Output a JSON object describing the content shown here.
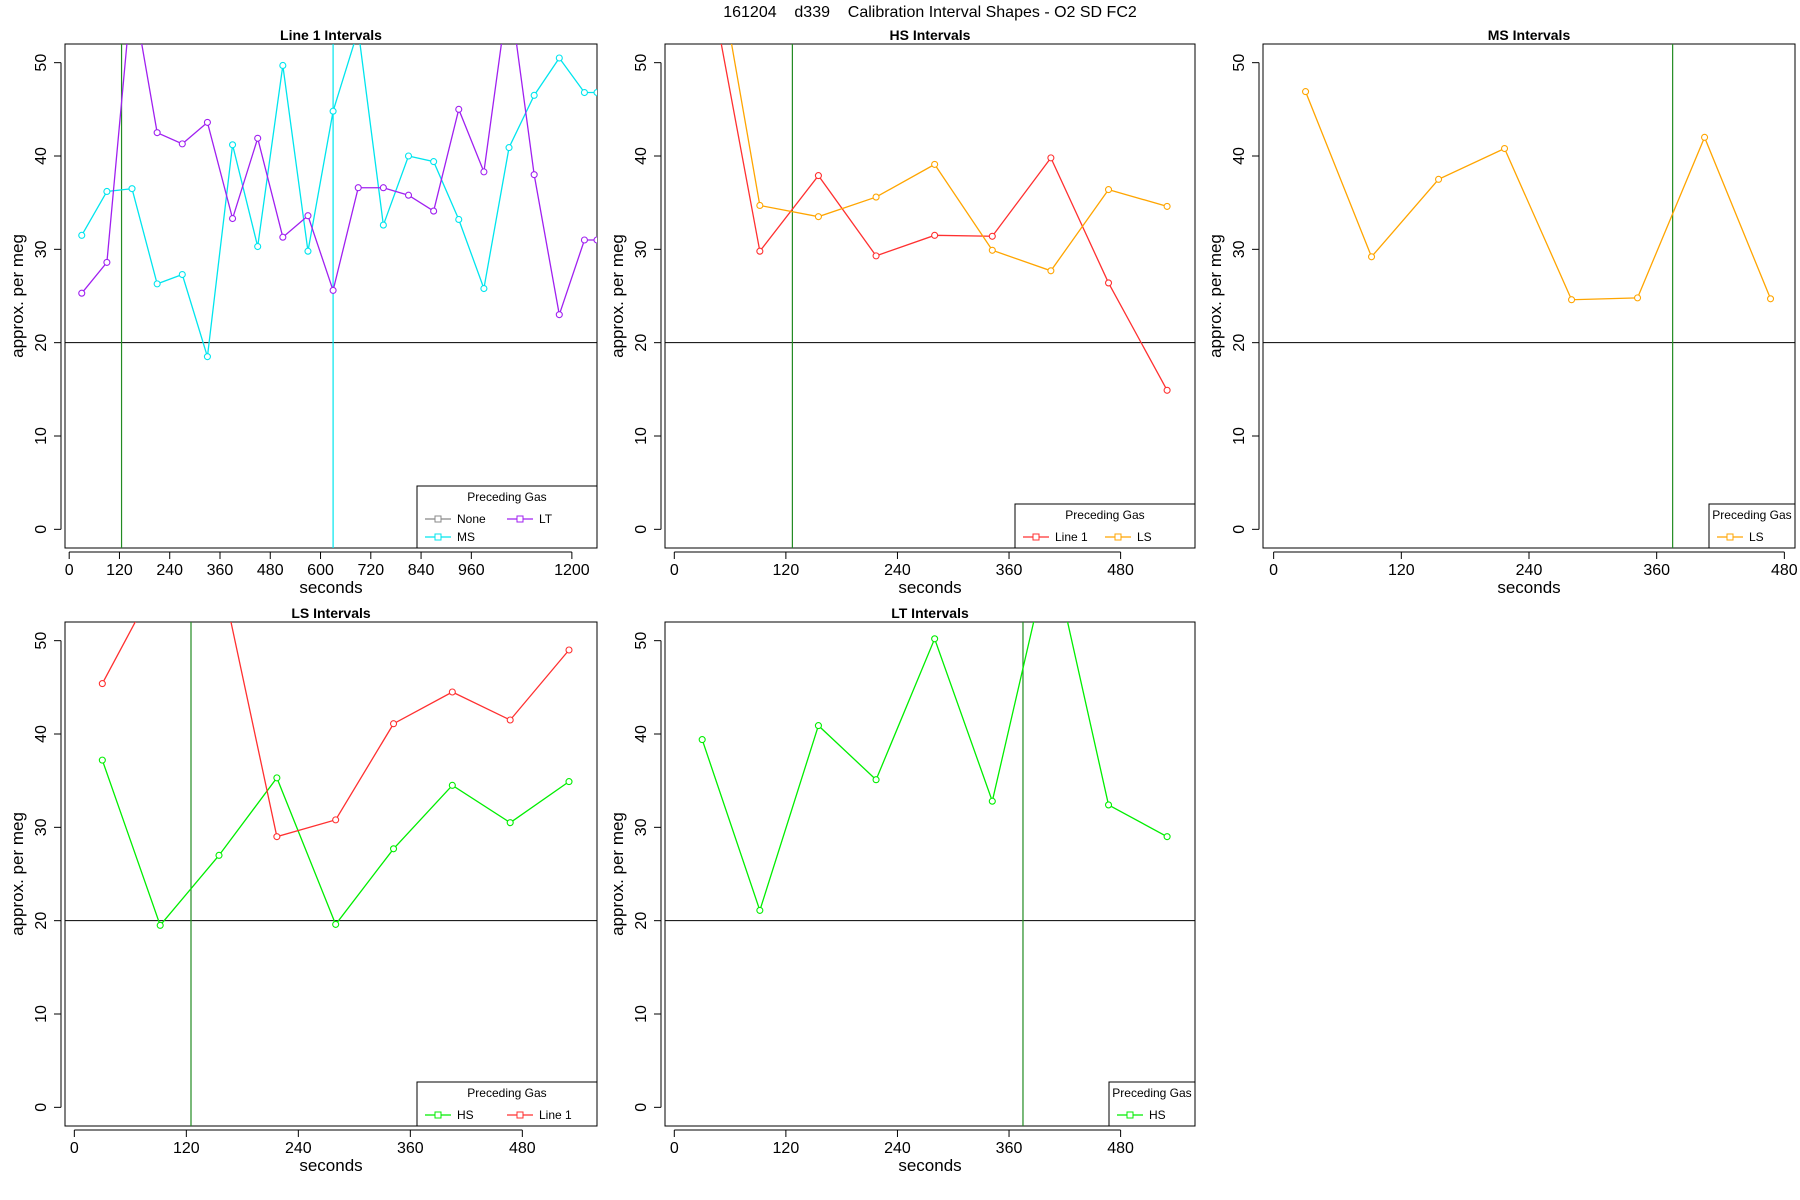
{
  "page_title": "161204    d339    Calibration Interval Shapes - O2 SD FC2",
  "chart_data": [
    {
      "type": "line",
      "title": "Line 1 Intervals",
      "xlabel": "seconds",
      "ylabel": "approx. per meg",
      "xlim": [
        -10,
        1260
      ],
      "ylim": [
        -2,
        52
      ],
      "xticks": [
        0,
        120,
        240,
        360,
        480,
        600,
        720,
        840,
        960,
        1200
      ],
      "xtick_labels": [
        "0",
        "120",
        "240",
        "360",
        "480",
        "600",
        "720",
        "840",
        "960",
        "1200"
      ],
      "yticks": [
        0,
        10,
        20,
        30,
        40,
        50
      ],
      "hline": 20,
      "vlines": [
        {
          "x": 125,
          "color": "#228B22"
        },
        {
          "x": 630,
          "color": "#00E5EE"
        }
      ],
      "legend": {
        "title": "Preceding Gas",
        "position": "bottom-right",
        "columns": 2,
        "entries": [
          {
            "name": "None",
            "color": "#888888"
          },
          {
            "name": "LT",
            "color": "#A020F0"
          },
          {
            "name": "MS",
            "color": "#00E5EE"
          }
        ]
      },
      "series": [
        {
          "name": "MS",
          "color": "#00E5EE",
          "x": [
            30,
            90,
            150,
            210,
            270,
            330,
            390,
            450,
            510,
            570,
            630,
            690,
            750,
            810,
            870,
            930,
            990,
            1050,
            1110,
            1170,
            1230,
            1260
          ],
          "y": [
            31.5,
            36.2,
            36.5,
            26.3,
            27.3,
            18.5,
            41.2,
            30.3,
            49.7,
            29.8,
            44.8,
            53.5,
            32.6,
            40.0,
            39.4,
            33.2,
            25.8,
            40.9,
            46.5,
            50.5,
            46.8,
            46.8
          ]
        },
        {
          "name": "LT",
          "color": "#A020F0",
          "x": [
            30,
            90,
            150,
            210,
            270,
            330,
            390,
            450,
            510,
            570,
            630,
            690,
            750,
            810,
            870,
            930,
            990,
            1050,
            1110,
            1170,
            1230,
            1260
          ],
          "y": [
            25.3,
            28.6,
            58.0,
            42.5,
            41.3,
            43.6,
            33.3,
            41.9,
            31.3,
            33.6,
            25.6,
            36.6,
            36.6,
            35.8,
            34.1,
            45.0,
            38.3,
            58.0,
            38.0,
            23.0,
            31.0,
            31.0
          ]
        }
      ]
    },
    {
      "type": "line",
      "title": "HS Intervals",
      "xlabel": "seconds",
      "ylabel": "approx. per meg",
      "xlim": [
        -10,
        560
      ],
      "ylim": [
        -2,
        52
      ],
      "xticks": [
        0,
        120,
        240,
        360,
        480
      ],
      "xtick_labels": [
        "0",
        "120",
        "240",
        "360",
        "480"
      ],
      "yticks": [
        0,
        10,
        20,
        30,
        40,
        50
      ],
      "hline": 20,
      "vlines": [
        {
          "x": 127,
          "color": "#228B22"
        }
      ],
      "legend": {
        "title": "Preceding Gas",
        "position": "bottom-right",
        "columns": 2,
        "entries": [
          {
            "name": "Line 1",
            "color": "#FF3030"
          },
          {
            "name": "LS",
            "color": "#FFA500"
          }
        ]
      },
      "series": [
        {
          "name": "Line 1",
          "color": "#FF3030",
          "x": [
            30,
            92,
            155,
            217,
            280,
            342,
            405,
            467,
            530
          ],
          "y": [
            63.0,
            29.8,
            37.9,
            29.3,
            31.5,
            31.4,
            39.8,
            26.4,
            14.9
          ]
        },
        {
          "name": "LS",
          "color": "#FFA500",
          "x": [
            30,
            92,
            155,
            217,
            280,
            342,
            405,
            467,
            530
          ],
          "y": [
            70.0,
            34.7,
            33.5,
            35.6,
            39.1,
            29.9,
            27.7,
            36.4,
            34.6
          ]
        }
      ]
    },
    {
      "type": "line",
      "title": "MS Intervals",
      "xlabel": "seconds",
      "ylabel": "approx. per meg",
      "xlim": [
        -10,
        490
      ],
      "ylim": [
        -2,
        52
      ],
      "xticks": [
        0,
        120,
        240,
        360,
        480
      ],
      "xtick_labels": [
        "0",
        "120",
        "240",
        "360",
        "480"
      ],
      "yticks": [
        0,
        10,
        20,
        30,
        40,
        50
      ],
      "hline": 20,
      "vlines": [
        {
          "x": 375,
          "color": "#228B22"
        }
      ],
      "legend": {
        "title": "Preceding Gas",
        "position": "bottom-right",
        "columns": 1,
        "entries": [
          {
            "name": "LS",
            "color": "#FFA500"
          }
        ]
      },
      "series": [
        {
          "name": "LS",
          "color": "#FFA500",
          "x": [
            30,
            92,
            155,
            217,
            280,
            342,
            405,
            467
          ],
          "y": [
            46.9,
            29.2,
            37.5,
            40.8,
            24.6,
            24.8,
            42.0,
            24.7
          ]
        }
      ]
    },
    {
      "type": "line",
      "title": "LS Intervals",
      "xlabel": "seconds",
      "ylabel": "approx. per meg",
      "xlim": [
        -10,
        560
      ],
      "ylim": [
        -2,
        52
      ],
      "xticks": [
        0,
        120,
        240,
        360,
        480
      ],
      "xtick_labels": [
        "0",
        "120",
        "240",
        "360",
        "480"
      ],
      "yticks": [
        0,
        10,
        20,
        30,
        40,
        50
      ],
      "hline": 20,
      "vlines": [
        {
          "x": 125,
          "color": "#228B22"
        }
      ],
      "legend": {
        "title": "Preceding Gas",
        "position": "bottom-right",
        "columns": 2,
        "entries": [
          {
            "name": "HS",
            "color": "#00EE00"
          },
          {
            "name": "Line 1",
            "color": "#FF3030"
          }
        ]
      },
      "series": [
        {
          "name": "HS",
          "color": "#00EE00",
          "x": [
            30,
            92,
            155,
            217,
            280,
            342,
            405,
            467,
            530
          ],
          "y": [
            37.2,
            19.5,
            27.0,
            35.3,
            19.6,
            27.7,
            34.5,
            30.5,
            34.9
          ]
        },
        {
          "name": "Line 1",
          "color": "#FF3030",
          "x": [
            30,
            92,
            155,
            217,
            280,
            342,
            405,
            467,
            530
          ],
          "y": [
            45.4,
            57.0,
            58.0,
            29.0,
            30.8,
            41.1,
            44.5,
            41.5,
            49.0
          ]
        }
      ]
    },
    {
      "type": "line",
      "title": "LT Intervals",
      "xlabel": "seconds",
      "ylabel": "approx. per meg",
      "xlim": [
        -10,
        560
      ],
      "ylim": [
        -2,
        52
      ],
      "xticks": [
        0,
        120,
        240,
        360,
        480
      ],
      "xtick_labels": [
        "0",
        "120",
        "240",
        "360",
        "480"
      ],
      "yticks": [
        0,
        10,
        20,
        30,
        40,
        50
      ],
      "hline": 20,
      "vlines": [
        {
          "x": 375,
          "color": "#228B22"
        }
      ],
      "legend": {
        "title": "Preceding Gas",
        "position": "bottom-right",
        "columns": 1,
        "entries": [
          {
            "name": "HS",
            "color": "#00EE00"
          }
        ]
      },
      "series": [
        {
          "name": "HS",
          "color": "#00EE00",
          "x": [
            30,
            92,
            155,
            217,
            280,
            342,
            405,
            467,
            530
          ],
          "y": [
            39.4,
            21.1,
            40.9,
            35.1,
            50.2,
            32.8,
            60.0,
            32.4,
            29.0
          ]
        }
      ]
    }
  ]
}
